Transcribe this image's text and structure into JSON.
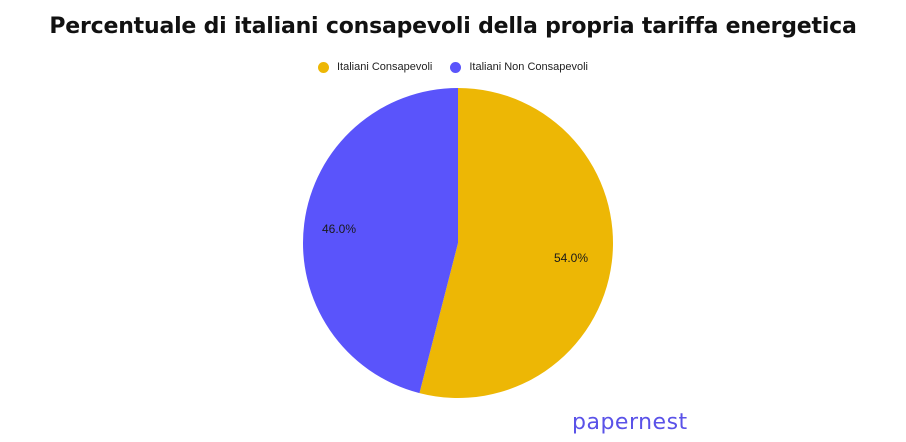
{
  "chart_data": {
    "type": "pie",
    "title": "Percentuale di italiani consapevoli della propria tariffa energetica",
    "categories": [
      "Italiani Consapevoli",
      "Italiani Non Consapevoli"
    ],
    "values": [
      54.0,
      46.0
    ],
    "labels": [
      "54.0%",
      "46.0%"
    ],
    "colors": [
      "#EDB705",
      "#5A54FB"
    ],
    "legend_position": "top"
  },
  "legend": [
    {
      "label": "Italiani Consapevoli",
      "color": "#EDB705"
    },
    {
      "label": "Italiani Non Consapevoli",
      "color": "#5A54FB"
    }
  ],
  "brand": "papernest"
}
